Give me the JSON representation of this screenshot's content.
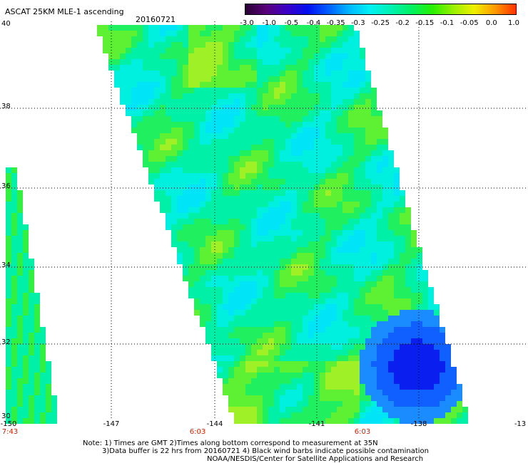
{
  "header": {
    "title": "ASCAT 25KM MLE-1 ascending",
    "date": "20160721"
  },
  "colorbar": {
    "labels": [
      "-3.0",
      "-1.0",
      "-0.5",
      "-0.4",
      "-0.35",
      "-0.3",
      "-0.25",
      "-0.2",
      "-0.15",
      "-0.1",
      "-0.05",
      "0.0",
      "1.0"
    ],
    "gradient": [
      "#2a0033",
      "#5a007a",
      "#3a00c8",
      "#0010f0",
      "#0060ff",
      "#00b8ff",
      "#00f2f2",
      "#00f2b0",
      "#00f260",
      "#2af000",
      "#9af000",
      "#f0f000",
      "#ff9a00",
      "#ff3000"
    ]
  },
  "axes": {
    "lat_ticks": [
      "40",
      "38",
      "36",
      "34",
      "32",
      "30"
    ],
    "lon_ticks": [
      "-150",
      "-147",
      "-144",
      "-141",
      "-138",
      "-13"
    ],
    "time_ticks": [
      "7:43",
      "6:03",
      "6:03"
    ],
    "lat_range": [
      30,
      40
    ],
    "lon_range": [
      -150,
      -135
    ]
  },
  "notes": {
    "line1": "Note: 1) Times are GMT 2)Times along bottom correspond to measurement at 35N",
    "line2": "3)Data buffer is 22 hrs from 20160721 4) Black wind barbs indicate possible contamination",
    "line3": "NOAA/NESDIS/Center for Satellite Applications and Research"
  },
  "colors": {
    "swath_base": "#00f0a0",
    "grid": "#000000",
    "time_text": "#cc2200"
  }
}
